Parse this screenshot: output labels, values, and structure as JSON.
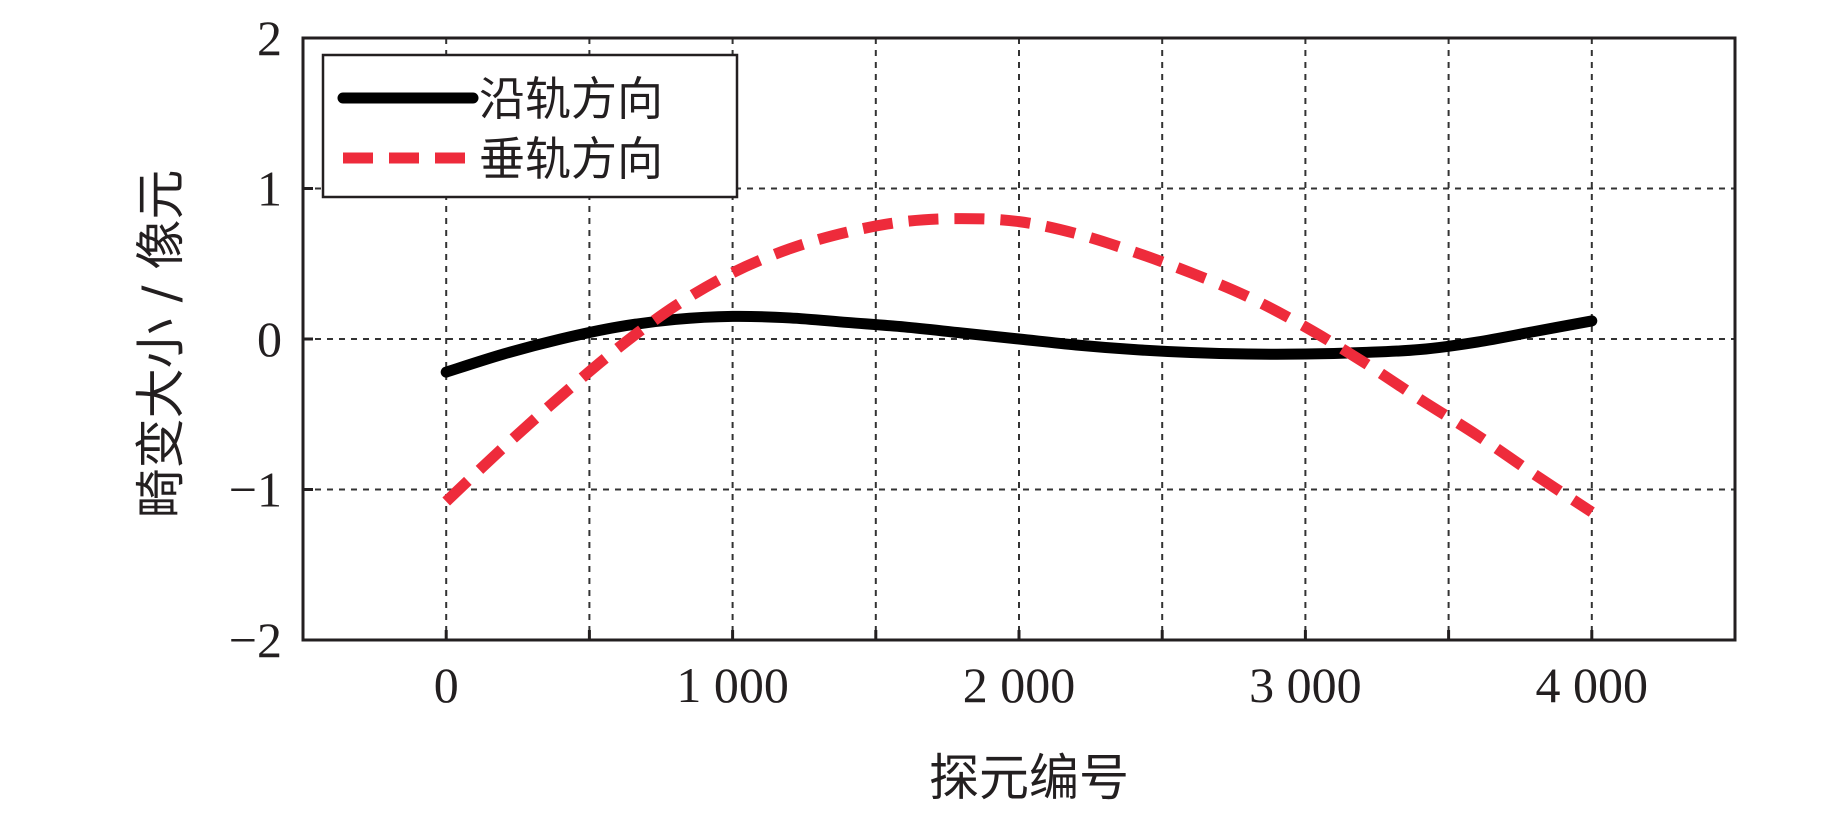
{
  "chart_data": {
    "type": "line",
    "xlabel": "探元编号",
    "ylabel": "畸变大小 / 像元",
    "xlim": [
      -500,
      4500
    ],
    "ylim": [
      -2,
      2
    ],
    "x_ticks": [
      0,
      1000,
      2000,
      3000,
      4000
    ],
    "x_tick_labels": [
      "0",
      "1 000",
      "2 000",
      "3 000",
      "4 000"
    ],
    "y_ticks": [
      2,
      1,
      0,
      -1,
      -2
    ],
    "y_tick_labels": [
      "2",
      "1",
      "0",
      "−1",
      "−2"
    ],
    "grid": true,
    "legend_position": "top-left",
    "series": [
      {
        "name": "沿轨方向",
        "color": "#000000",
        "style": "solid",
        "x": [
          0,
          200,
          400,
          600,
          800,
          1000,
          1200,
          1400,
          1600,
          1800,
          2000,
          2200,
          2400,
          2600,
          2800,
          3000,
          3200,
          3400,
          3600,
          3800,
          4000
        ],
        "y": [
          -0.22,
          -0.1,
          0.0,
          0.08,
          0.13,
          0.15,
          0.14,
          0.11,
          0.08,
          0.04,
          0.0,
          -0.04,
          -0.07,
          -0.09,
          -0.1,
          -0.1,
          -0.09,
          -0.07,
          -0.02,
          0.05,
          0.12
        ]
      },
      {
        "name": "垂轨方向",
        "color": "#ee2b3b",
        "style": "dashed",
        "x": [
          0,
          200,
          400,
          600,
          800,
          1000,
          1200,
          1400,
          1600,
          1800,
          2000,
          2200,
          2400,
          2600,
          2800,
          3000,
          3200,
          3400,
          3600,
          3800,
          4000
        ],
        "y": [
          -1.08,
          -0.72,
          -0.38,
          -0.06,
          0.22,
          0.44,
          0.6,
          0.71,
          0.78,
          0.8,
          0.78,
          0.7,
          0.58,
          0.44,
          0.28,
          0.08,
          -0.15,
          -0.4,
          -0.64,
          -0.9,
          -1.15
        ]
      }
    ]
  }
}
